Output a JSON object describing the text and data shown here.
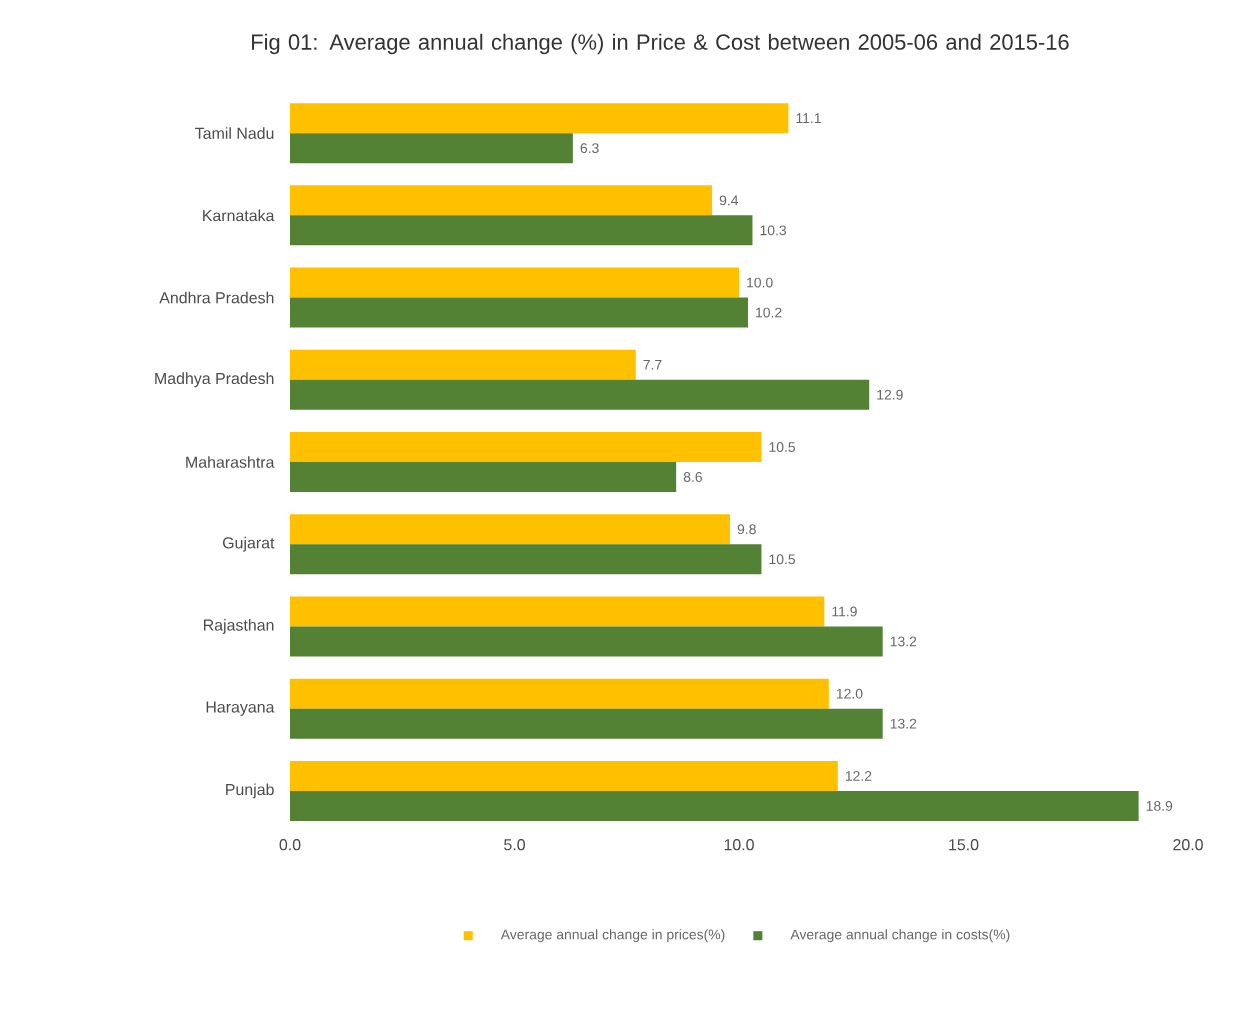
{
  "chart_data": {
    "type": "bar",
    "orientation": "horizontal",
    "title": "Fig 01: Average annual change (%) in Price & Cost between 2005-06 and 2015-16",
    "categories": [
      "Tamil Nadu",
      "Karnataka",
      "Andhra Pradesh",
      "Madhya Pradesh",
      "Maharashtra",
      "Gujarat",
      "Rajasthan",
      "Harayana",
      "Punjab"
    ],
    "series": [
      {
        "name": "Average annual change in prices(%)",
        "color": "#ffc000",
        "values": [
          11.1,
          9.4,
          10.0,
          7.7,
          10.5,
          9.8,
          11.9,
          12.0,
          12.2
        ],
        "value_labels": [
          "11.1",
          "9.4",
          "10.0",
          "7.7",
          "10.5",
          "9.8",
          "11.9",
          "12.0",
          "12.2"
        ]
      },
      {
        "name": "Average annual change in costs(%)",
        "color": "#548235",
        "values": [
          6.3,
          10.3,
          10.2,
          12.9,
          8.6,
          10.5,
          13.2,
          13.2,
          18.9
        ],
        "value_labels": [
          "6.3",
          "10.3",
          "10.2",
          "12.9",
          "8.6",
          "10.5",
          "13.2",
          "13.2",
          "18.9"
        ]
      }
    ],
    "xlim": [
      0,
      20
    ],
    "xticks": [
      {
        "value": 0,
        "label": "0.0"
      },
      {
        "value": 5,
        "label": "5.0"
      },
      {
        "value": 10,
        "label": "10.0"
      },
      {
        "value": 15,
        "label": "15.0"
      },
      {
        "value": 20,
        "label": "20.0"
      }
    ],
    "legend": "bottom",
    "grid": false
  }
}
